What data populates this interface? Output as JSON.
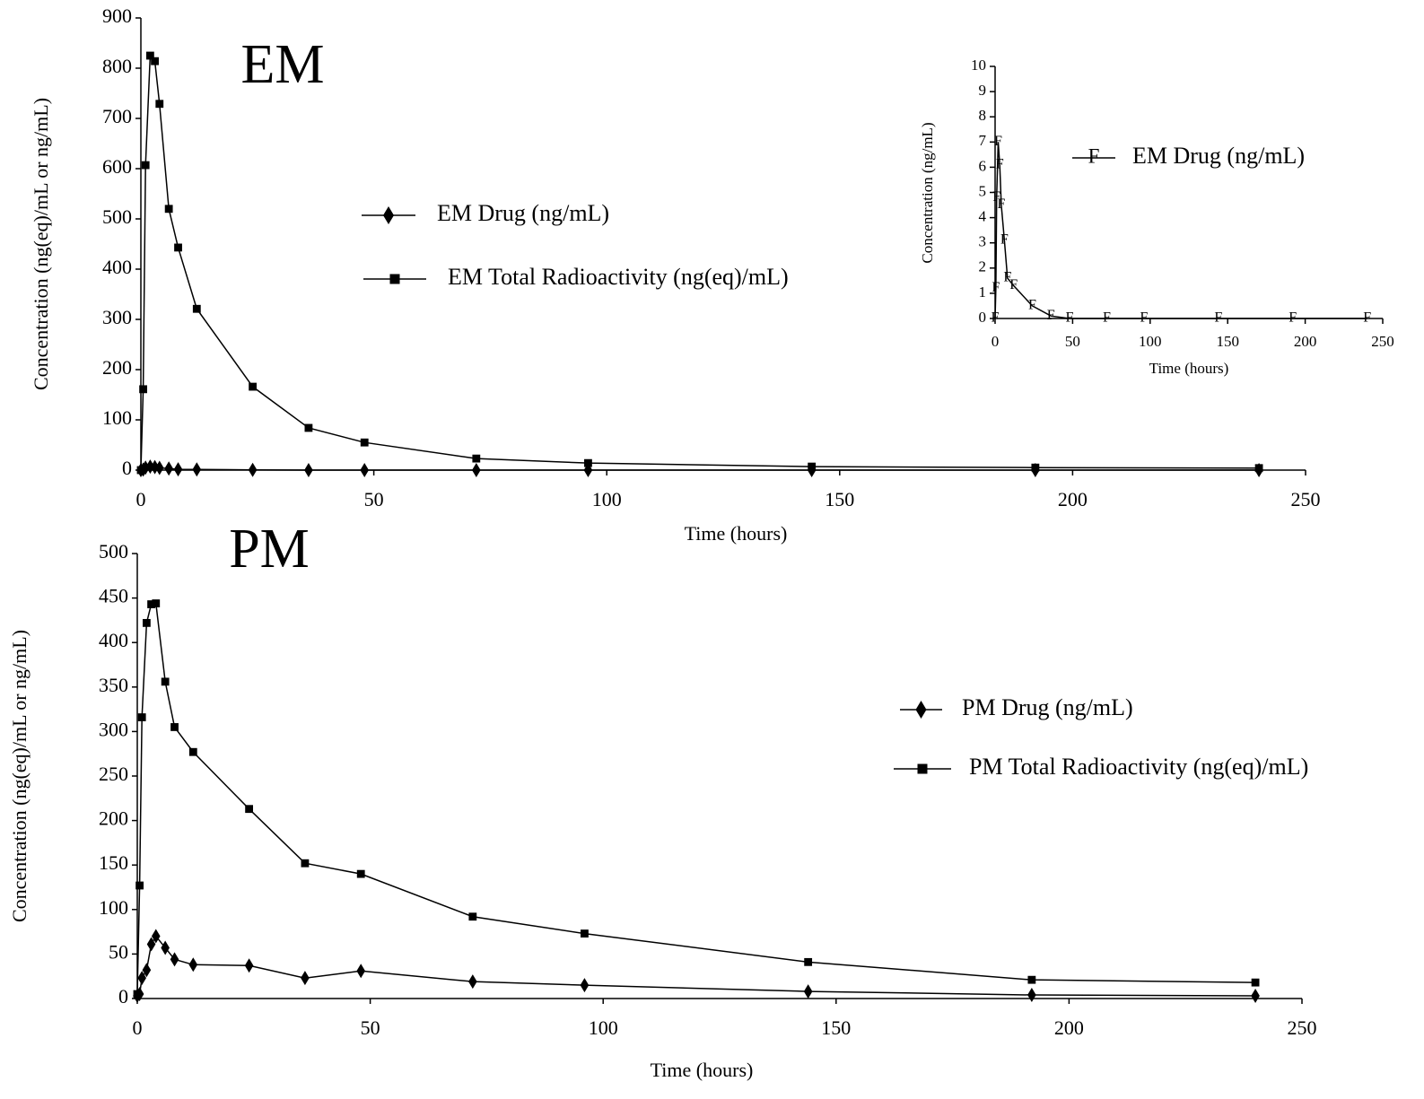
{
  "chart_data": [
    {
      "type": "line",
      "title": "EM",
      "x_label": "Time (hours)",
      "y_label": "Concentration (ng(eq)/mL or ng/mL)",
      "x": [
        0,
        0.5,
        1,
        2,
        3,
        4,
        6,
        8,
        12,
        24,
        36,
        48,
        72,
        96,
        144,
        192,
        240
      ],
      "xlim": [
        0,
        250
      ],
      "xticks": [
        0,
        50,
        100,
        150,
        200,
        250
      ],
      "ylim": [
        0,
        900
      ],
      "yticks": [
        0,
        100,
        200,
        300,
        400,
        500,
        600,
        700,
        800,
        900
      ],
      "series": [
        {
          "name": "EM Drug (ng/mL)",
          "color": "#000000",
          "marker": "diamond",
          "values": [
            0,
            1.2,
            4.8,
            7.0,
            6.1,
            4.5,
            3.1,
            1.6,
            1.3,
            0.5,
            0.1,
            0,
            0,
            0,
            0,
            0,
            0
          ]
        },
        {
          "name": "EM Total Radioactivity (ng(eq)/mL)",
          "color": "#000000",
          "marker": "square",
          "values": [
            0,
            161,
            607,
            825,
            814,
            729,
            520,
            443,
            321,
            166,
            84,
            55,
            23,
            14,
            7,
            5,
            4
          ]
        }
      ]
    },
    {
      "type": "line",
      "x_label": "Time (hours)",
      "y_label": "Concentration (ng/mL)",
      "x": [
        0,
        0.5,
        1,
        2,
        3,
        4,
        6,
        8,
        12,
        24,
        36,
        48,
        72,
        96,
        144,
        192,
        240
      ],
      "xlim": [
        0,
        250
      ],
      "xticks": [
        0,
        50,
        100,
        150,
        200,
        250
      ],
      "ylim": [
        0,
        10
      ],
      "yticks": [
        0,
        1,
        2,
        3,
        4,
        5,
        6,
        7,
        8,
        9,
        10
      ],
      "series": [
        {
          "name": "EM Drug (ng/mL)",
          "color": "#000000",
          "marker": "F",
          "values": [
            0,
            1.2,
            4.8,
            7.0,
            6.1,
            4.5,
            3.1,
            1.6,
            1.3,
            0.5,
            0.1,
            0,
            0,
            0,
            0,
            0,
            0
          ]
        }
      ]
    },
    {
      "type": "line",
      "title": "PM",
      "x_label": "Time (hours)",
      "y_label": "Concentration (ng(eq)/mL or ng/mL)",
      "x": [
        0,
        0.5,
        1,
        2,
        3,
        4,
        6,
        8,
        12,
        24,
        36,
        48,
        72,
        96,
        144,
        192,
        240
      ],
      "xlim": [
        0,
        250
      ],
      "xticks": [
        0,
        50,
        100,
        150,
        200,
        250
      ],
      "ylim": [
        0,
        500
      ],
      "yticks": [
        0,
        50,
        100,
        150,
        200,
        250,
        300,
        350,
        400,
        450,
        500
      ],
      "series": [
        {
          "name": "PM Drug (ng/mL)",
          "color": "#000000",
          "marker": "diamond",
          "values": [
            3,
            5,
            23,
            32,
            61,
            70,
            57,
            44,
            38,
            37,
            23,
            31,
            19,
            15,
            8,
            4,
            3
          ]
        },
        {
          "name": "PM Total Radioactivity (ng(eq)/mL)",
          "color": "#000000",
          "marker": "square",
          "values": [
            5,
            127,
            316,
            422,
            443,
            444,
            356,
            305,
            277,
            213,
            152,
            140,
            92,
            73,
            41,
            21,
            18
          ]
        }
      ]
    }
  ]
}
